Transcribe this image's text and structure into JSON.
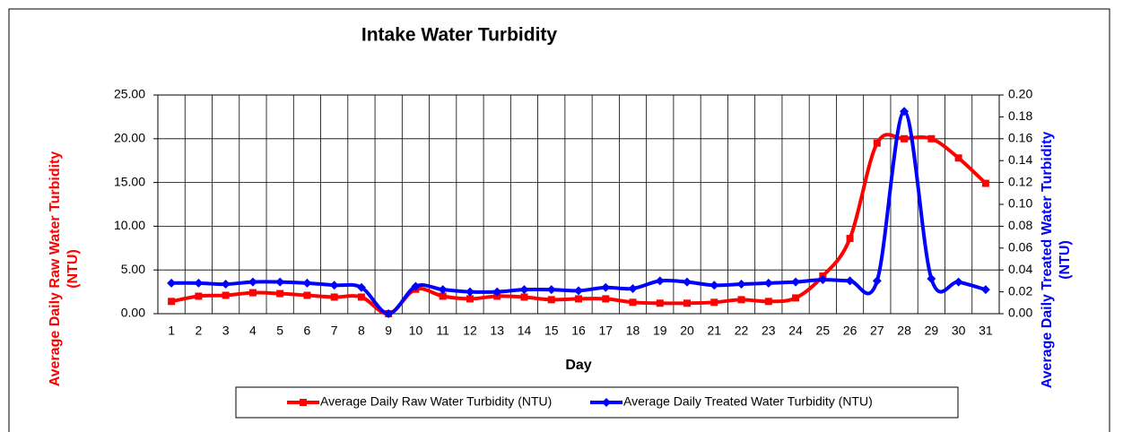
{
  "chart_data": {
    "type": "line",
    "title": "Intake Water Turbidity",
    "xlabel": "Day",
    "ylabel": [
      "Average Daily Raw Water Turbidity",
      "(NTU)"
    ],
    "y2label": [
      "Average Daily Treated Water Turbidity",
      "(NTU)"
    ],
    "categories": [
      "1",
      "2",
      "3",
      "4",
      "5",
      "6",
      "7",
      "8",
      "9",
      "10",
      "11",
      "12",
      "13",
      "14",
      "15",
      "16",
      "17",
      "18",
      "19",
      "20",
      "21",
      "22",
      "23",
      "24",
      "25",
      "26",
      "27",
      "28",
      "29",
      "30",
      "31"
    ],
    "series": [
      {
        "name": "Average Daily Raw Water Turbidity (NTU)",
        "color": "#ff0000",
        "marker": "square",
        "axis": "y",
        "values": [
          1.4,
          2.0,
          2.1,
          2.4,
          2.3,
          2.1,
          1.9,
          1.9,
          0.0,
          2.8,
          2.0,
          1.7,
          2.0,
          1.9,
          1.6,
          1.7,
          1.7,
          1.3,
          1.2,
          1.2,
          1.3,
          1.6,
          1.4,
          1.8,
          4.3,
          8.6,
          19.5,
          20.0,
          20.0,
          17.8,
          14.9
        ]
      },
      {
        "name": "Average Daily Treated Water Turbidity (NTU)",
        "color": "#0000ff",
        "marker": "diamond",
        "axis": "y2",
        "values": [
          0.028,
          0.028,
          0.027,
          0.029,
          0.029,
          0.028,
          0.026,
          0.024,
          0.0,
          0.025,
          0.022,
          0.02,
          0.02,
          0.022,
          0.022,
          0.021,
          0.024,
          0.023,
          0.03,
          0.029,
          0.026,
          0.027,
          0.028,
          0.029,
          0.031,
          0.03,
          0.03,
          0.185,
          0.032,
          0.029,
          0.022
        ]
      }
    ],
    "ylim": [
      0,
      25
    ],
    "yticks": [
      {
        "value": 0,
        "label": "0.00"
      },
      {
        "value": 5,
        "label": "5.00"
      },
      {
        "value": 10,
        "label": "10.00"
      },
      {
        "value": 15,
        "label": "15.00"
      },
      {
        "value": 20,
        "label": "20.00"
      },
      {
        "value": 25,
        "label": "25.00"
      }
    ],
    "y2lim": [
      0,
      0.2
    ],
    "y2ticks": [
      {
        "value": 0,
        "label": "0.00"
      },
      {
        "value": 0.02,
        "label": "0.02"
      },
      {
        "value": 0.04,
        "label": "0.04"
      },
      {
        "value": 0.06,
        "label": "0.06"
      },
      {
        "value": 0.08,
        "label": "0.08"
      },
      {
        "value": 0.1,
        "label": "0.10"
      },
      {
        "value": 0.12,
        "label": "0.12"
      },
      {
        "value": 0.14,
        "label": "0.14"
      },
      {
        "value": 0.16,
        "label": "0.16"
      },
      {
        "value": 0.18,
        "label": "0.18"
      },
      {
        "value": 0.2,
        "label": "0.20"
      }
    ],
    "grid": true,
    "legend": "bottom"
  }
}
